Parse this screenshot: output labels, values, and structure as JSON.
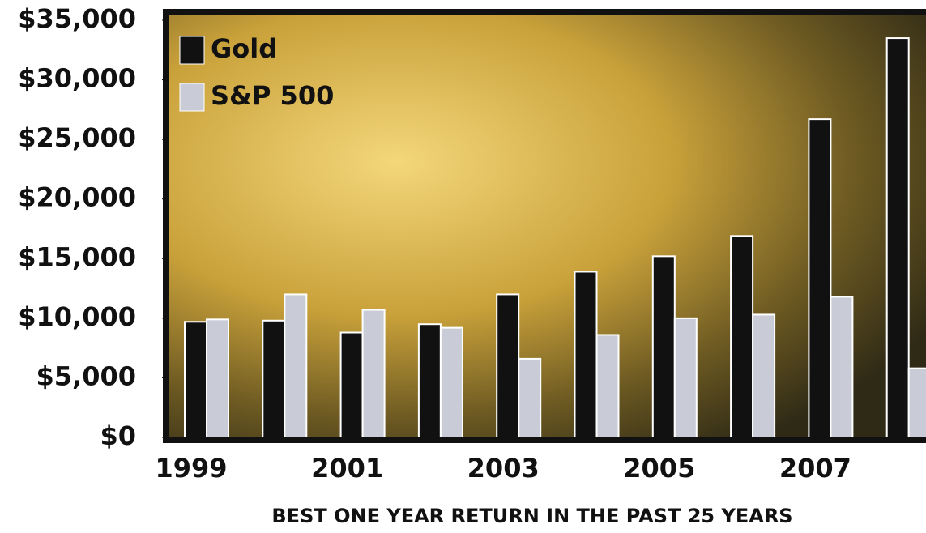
{
  "chart_data": {
    "type": "bar",
    "x_label": "BEST ONE YEAR RETURN IN THE PAST 25 YEARS",
    "categories": [
      "1999",
      null,
      "2001",
      null,
      "2003",
      null,
      "2005",
      null,
      "2007",
      null
    ],
    "series": [
      {
        "name": "Gold",
        "color": "#111111",
        "values": [
          9700,
          9800,
          8800,
          9500,
          12000,
          13900,
          15200,
          16900,
          26700,
          33500
        ]
      },
      {
        "name": "S&P 500",
        "color": "#c9ccd6",
        "values": [
          9900,
          12000,
          10700,
          9200,
          6600,
          8600,
          10000,
          10300,
          11800,
          5800
        ]
      }
    ],
    "ylim": [
      0,
      35000
    ],
    "yticks": [
      {
        "value": 0,
        "label": "$0"
      },
      {
        "value": 5000,
        "label": "$5,000"
      },
      {
        "value": 10000,
        "label": "$10,000"
      },
      {
        "value": 15000,
        "label": "$15,000"
      },
      {
        "value": 20000,
        "label": "$20,000"
      },
      {
        "value": 25000,
        "label": "$25,000"
      },
      {
        "value": 30000,
        "label": "$30,000"
      },
      {
        "value": 35000,
        "label": "$35,000"
      }
    ],
    "legend": "top-left"
  }
}
